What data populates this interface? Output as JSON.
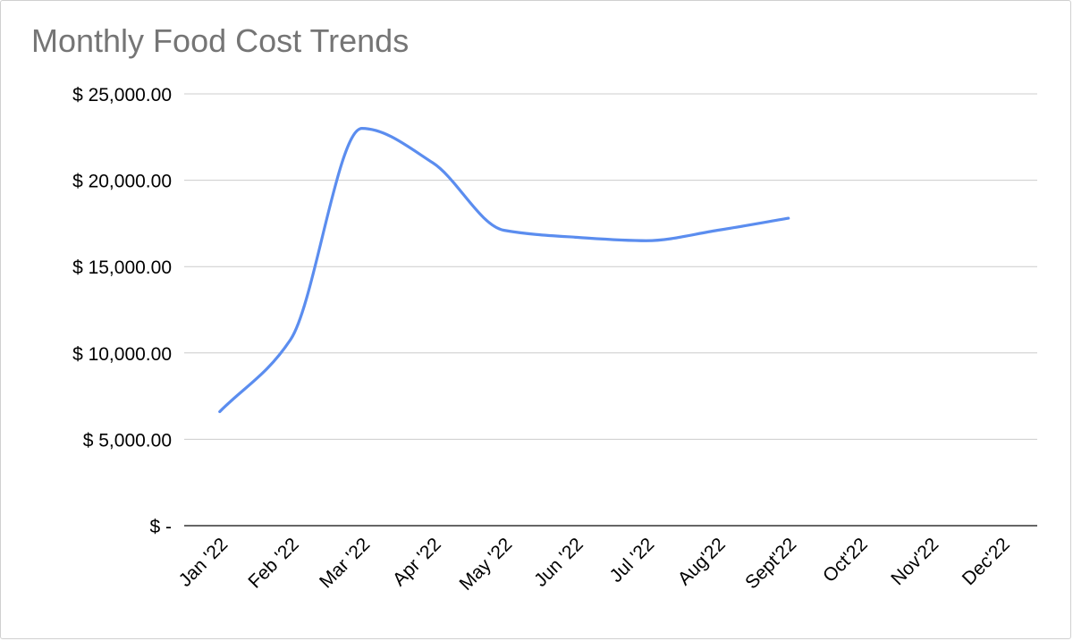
{
  "chart_data": {
    "type": "line",
    "title": "Monthly Food Cost Trends",
    "xlabel": "",
    "ylabel": "",
    "categories": [
      "Jan '22",
      "Feb '22",
      "Mar '22",
      "Apr '22",
      "May '22",
      "Jun '22",
      "Jul '22",
      "Aug'22",
      "Sept'22",
      "Oct'22",
      "Nov'22",
      "Dec'22"
    ],
    "series": [
      {
        "values": [
          6600,
          10800,
          23000,
          21000,
          17100,
          16700,
          16500,
          17100,
          17800,
          null,
          null,
          null
        ],
        "color": "#5b8def"
      }
    ],
    "ylim": [
      0,
      25000
    ],
    "y_ticks": [
      0,
      5000,
      10000,
      15000,
      20000,
      25000
    ],
    "y_tick_labels": [
      "$ -",
      "$ 5,000.00",
      "$ 10,000.00",
      "$ 15,000.00",
      "$ 20,000.00",
      "$ 25,000.00"
    ],
    "grid": true,
    "smooth": true,
    "legend": "none"
  }
}
